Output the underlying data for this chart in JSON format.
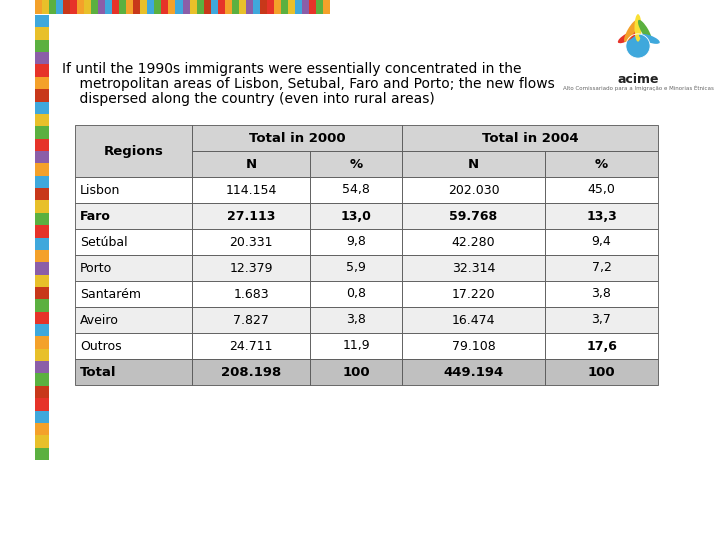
{
  "title_line1": "If until the 1990s immigrants were essentially concentrated in the",
  "title_line2": "    metropolitan areas of Lisbon, Setubal, Faro and Porto; the new flows",
  "title_line3": "    dispersed along the country (even into rural areas)",
  "group_headers": [
    "Total in 2000",
    "Total in 2004"
  ],
  "rows": [
    [
      "Lisbon",
      "114.154",
      "54,8",
      "202.030",
      "45,0",
      false,
      false,
      false,
      false
    ],
    [
      "Faro",
      "27.113",
      "13,0",
      "59.768",
      "13,3",
      true,
      true,
      true,
      true
    ],
    [
      "Setúbal",
      "20.331",
      "9,8",
      "42.280",
      "9,4",
      false,
      false,
      false,
      false
    ],
    [
      "Porto",
      "12.379",
      "5,9",
      "32.314",
      "7,2",
      false,
      false,
      false,
      false
    ],
    [
      "Santarém",
      "1.683",
      "0,8",
      "17.220",
      "3,8",
      false,
      false,
      false,
      false
    ],
    [
      "Aveiro",
      "7.827",
      "3,8",
      "16.474",
      "3,7",
      false,
      false,
      false,
      false
    ],
    [
      "Outros",
      "24.711",
      "11,9",
      "79.108",
      "17,6",
      false,
      false,
      false,
      true
    ]
  ],
  "total_row": [
    "Total",
    "208.198",
    "100",
    "449.194",
    "100"
  ],
  "bg_color": "#ffffff",
  "header_bg": "#d4d4d4",
  "total_bg": "#c0c0c0",
  "top_stripe_colors": [
    "#f4a12a",
    "#e8c02a",
    "#5bb040",
    "#3fa8dc",
    "#c8381a",
    "#e63329",
    "#f4a12a",
    "#e8c02a",
    "#5bb040",
    "#8b5ea8",
    "#3fa8dc",
    "#e63329",
    "#5bb040",
    "#f4a12a",
    "#c8381a",
    "#e8c02a",
    "#3fa8dc",
    "#5bb040",
    "#e63329",
    "#f4a12a",
    "#3fa8dc",
    "#8b5ea8",
    "#e8c02a",
    "#5bb040",
    "#c8381a",
    "#3fa8dc",
    "#e63329",
    "#f4a12a",
    "#5bb040",
    "#e8c02a",
    "#8b5ea8",
    "#3fa8dc",
    "#c8381a",
    "#e63329",
    "#f4a12a",
    "#5bb040",
    "#e8c02a",
    "#3fa8dc",
    "#8b5ea8",
    "#e63329",
    "#5bb040",
    "#f4a12a"
  ],
  "left_stripe_colors": [
    "#3fa8dc",
    "#e8c02a",
    "#5bb040",
    "#8b5ea8",
    "#e63329",
    "#f4a12a",
    "#c8381a",
    "#3fa8dc",
    "#e8c02a",
    "#5bb040",
    "#e63329",
    "#8b5ea8",
    "#f4a12a",
    "#3fa8dc",
    "#c8381a",
    "#e8c02a",
    "#5bb040",
    "#e63329",
    "#3fa8dc",
    "#f4a12a",
    "#8b5ea8",
    "#e8c02a",
    "#c8381a",
    "#5bb040",
    "#e63329",
    "#3fa8dc",
    "#f4a12a",
    "#e8c02a",
    "#8b5ea8",
    "#5bb040",
    "#c8381a",
    "#e63329",
    "#3fa8dc",
    "#f4a12a",
    "#e8c02a",
    "#5bb040"
  ],
  "acime_logo_colors": [
    "#e63329",
    "#f4a12a",
    "#f9e034",
    "#5bb040",
    "#3fa8dc"
  ]
}
